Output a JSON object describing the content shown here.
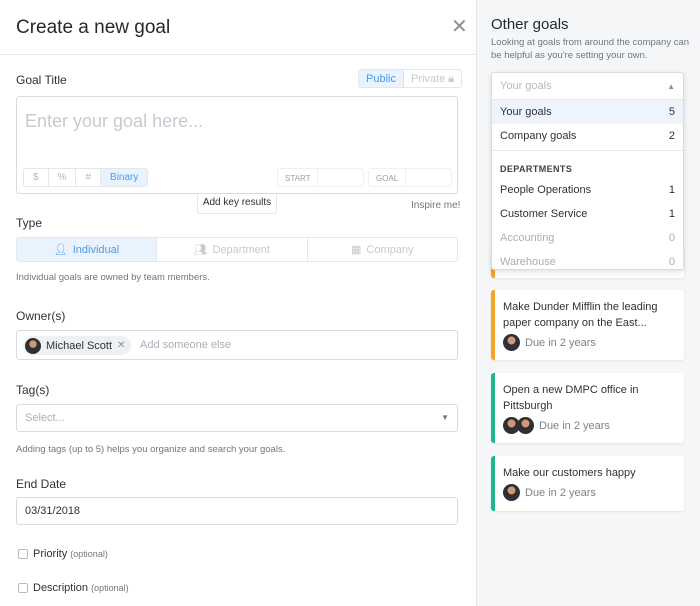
{
  "modal": {
    "title": "Create a new goal",
    "goal_title_label": "Goal Title",
    "visibility": [
      "Public",
      "Private"
    ],
    "goal_placeholder": "Enter your goal here...",
    "metric_types": [
      "$",
      "%",
      "#",
      "Binary"
    ],
    "start_label": "START",
    "goal_label": "GOAL",
    "add_key_results": "Add key results",
    "inspire": "Inspire me!",
    "type_label": "Type",
    "types": [
      "Individual",
      "Department",
      "Company"
    ],
    "type_help": "Individual goals are owned by team members.",
    "owners_label": "Owner(s)",
    "owner": "Michael Scott",
    "owner_placeholder": "Add someone else",
    "tags_label": "Tag(s)",
    "tags_placeholder": "Select...",
    "tags_help": "Adding tags (up to 5) helps you organize and search your goals.",
    "end_date_label": "End Date",
    "end_date": "03/31/2018",
    "priority": "Priority",
    "description": "Description",
    "optional": "(optional)"
  },
  "sidebar": {
    "title": "Other goals",
    "subtitle": "Looking at goals from around the company can be helpful as you're setting your own.",
    "filter_placeholder": "Your goals",
    "options": [
      {
        "label": "Your goals",
        "count": "5"
      },
      {
        "label": "Company goals",
        "count": "2"
      }
    ],
    "departments_header": "DEPARTMENTS",
    "departments": [
      {
        "label": "People Operations",
        "count": "1"
      },
      {
        "label": "Customer Service",
        "count": "1"
      },
      {
        "label": "Accounting",
        "count": "0"
      },
      {
        "label": "Warehouse",
        "count": "0"
      }
    ],
    "goals": [
      {
        "title": "Make Dunder Mifflin the leading paper company on the East...",
        "due": "Due in 2 years",
        "color": "#f5a623"
      },
      {
        "title": "Open a new DMPC office in Pittsburgh",
        "due": "Due in 2 years",
        "color": "#1fb58f"
      },
      {
        "title": "Make our customers happy",
        "due": "Due in 2 years",
        "color": "#1fb58f"
      }
    ]
  }
}
